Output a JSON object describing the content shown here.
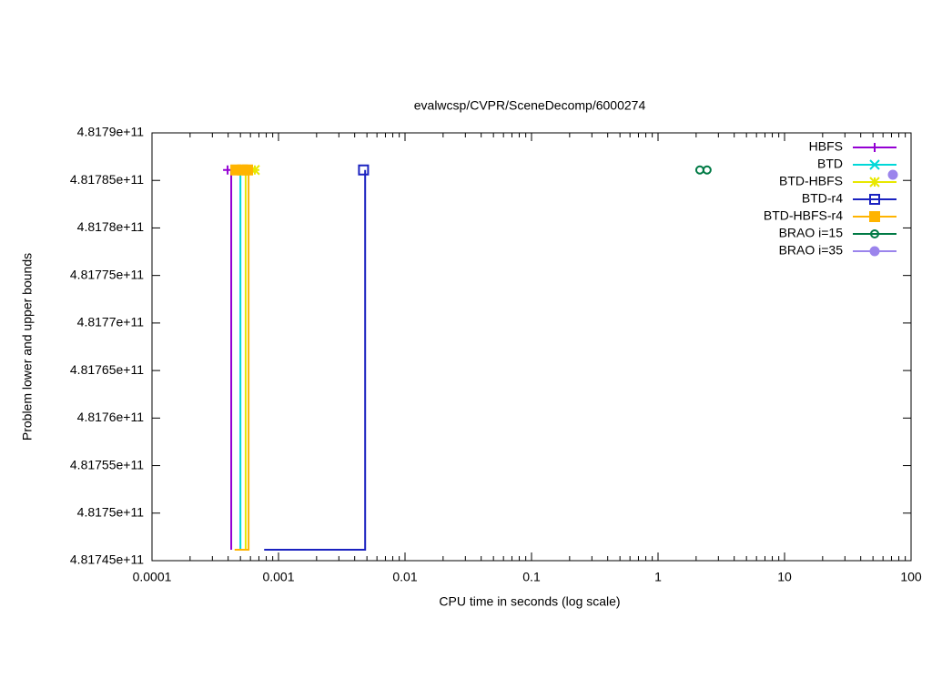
{
  "chart_data": {
    "type": "line",
    "title": "evalwcsp/CVPR/SceneDecomp/6000274",
    "x_label": "CPU time in seconds (log scale)",
    "y_label": "Problem lower and upper bounds",
    "x_log": true,
    "xlim": [
      0.0001,
      100
    ],
    "xticks": [
      0.0001,
      0.001,
      0.01,
      0.1,
      1,
      10,
      100
    ],
    "ylim": [
      481745000000,
      481790000000
    ],
    "yticks": [
      {
        "value": 481745000000,
        "label": "4.81745e+11"
      },
      {
        "value": 481750000000,
        "label": "4.8175e+11"
      },
      {
        "value": 481755000000,
        "label": "4.81755e+11"
      },
      {
        "value": 481760000000,
        "label": "4.8176e+11"
      },
      {
        "value": 481765000000,
        "label": "4.81765e+11"
      },
      {
        "value": 481770000000,
        "label": "4.8177e+11"
      },
      {
        "value": 481775000000,
        "label": "4.81775e+11"
      },
      {
        "value": 481780000000,
        "label": "4.8178e+11"
      },
      {
        "value": 481785000000,
        "label": "4.81785e+11"
      },
      {
        "value": 481790000000,
        "label": "4.8179e+11"
      }
    ],
    "legend": "top-right",
    "series": [
      {
        "name": "HBFS",
        "color": "#9400d3",
        "marker": "plus",
        "x": [
          0.000423,
          0.000423
        ],
        "values": [
          481746150000,
          481786100000
        ],
        "points_x": [
          0.000396
        ],
        "points": [
          481786100000
        ]
      },
      {
        "name": "BTD",
        "color": "#00d8d8",
        "marker": "cross",
        "x": [
          0.0005,
          0.0005
        ],
        "values": [
          481746150000,
          481786100000
        ],
        "points_x": [
          0.0005
        ],
        "points": [
          481786100000
        ]
      },
      {
        "name": "BTD-HBFS",
        "color": "#e8e800",
        "marker": "star",
        "x": [
          0.00055,
          0.00055
        ],
        "values": [
          481746150000,
          481786100000
        ],
        "points_x": [
          0.00055,
          0.00065
        ],
        "points": [
          481786100000,
          481786100000
        ]
      },
      {
        "name": "BTD-r4",
        "color": "#1a22c0",
        "marker": "square-open",
        "x": [
          0.00077,
          0.00484,
          0.00484
        ],
        "values": [
          481746150000,
          481746150000,
          481786100000
        ],
        "points_x": [
          0.0047
        ],
        "points": [
          481786100000
        ]
      },
      {
        "name": "BTD-HBFS-r4",
        "color": "#ffb400",
        "marker": "square",
        "x": [
          0.00045,
          0.00058,
          0.00058
        ],
        "values": [
          481746150000,
          481746150000,
          481786100000
        ],
        "points_x": [
          0.00046,
          0.00052,
          0.00057
        ],
        "points": [
          481786100000,
          481786100000,
          481786100000
        ]
      },
      {
        "name": "BRAO i=15",
        "color": "#007a45",
        "marker": "circle-open",
        "x": [],
        "values": [],
        "points_x": [
          2.14,
          2.44
        ],
        "points": [
          481786100000,
          481786100000
        ]
      },
      {
        "name": "BRAO i=35",
        "color": "#9b84ec",
        "marker": "circle",
        "x": [],
        "values": [],
        "points_x": [
          71.8
        ],
        "points": [
          481785600000
        ]
      }
    ]
  }
}
